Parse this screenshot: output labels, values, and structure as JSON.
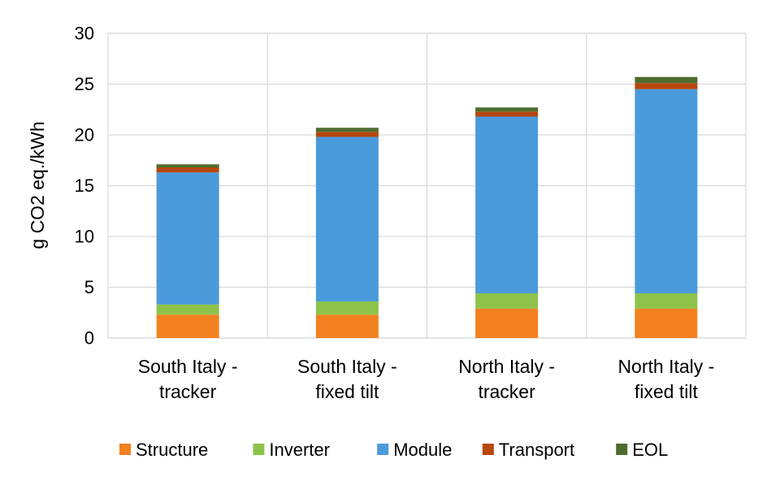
{
  "chart_data": {
    "type": "bar",
    "stacked": true,
    "title": "",
    "xlabel": "",
    "ylabel": "g CO2 eq./kWh",
    "ylim": [
      0,
      30
    ],
    "yticks": [
      0,
      5,
      10,
      15,
      20,
      25,
      30
    ],
    "grid": true,
    "legend_position": "bottom",
    "categories": [
      [
        "South Italy -",
        "tracker"
      ],
      [
        "South Italy -",
        "fixed tilt"
      ],
      [
        "North Italy -",
        "tracker"
      ],
      [
        "North Italy -",
        "fixed tilt"
      ]
    ],
    "series": [
      {
        "name": "Structure",
        "color": "#F4811F",
        "values": [
          2.3,
          2.3,
          2.9,
          2.9
        ]
      },
      {
        "name": "Inverter",
        "color": "#8DC34A",
        "values": [
          1.0,
          1.3,
          1.5,
          1.5
        ]
      },
      {
        "name": "Module",
        "color": "#4A9BDC",
        "values": [
          13.0,
          16.2,
          17.4,
          20.1
        ]
      },
      {
        "name": "Transport",
        "color": "#B6470F",
        "values": [
          0.5,
          0.5,
          0.5,
          0.6
        ]
      },
      {
        "name": "EOL",
        "color": "#4E6C2E",
        "values": [
          0.3,
          0.4,
          0.4,
          0.6
        ]
      }
    ]
  }
}
